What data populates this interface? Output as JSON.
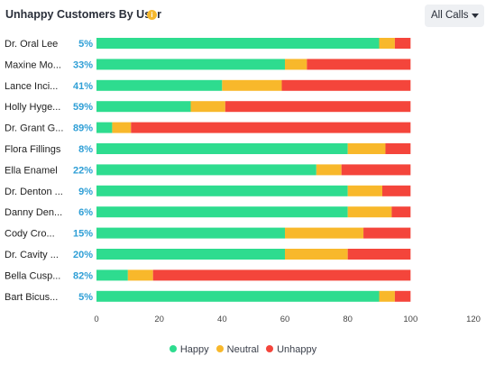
{
  "header": {
    "title": "Unhappy Customers By User",
    "info_icon": "info-icon"
  },
  "filter": {
    "selected": "All Calls",
    "icon": "caret-down-icon"
  },
  "colors": {
    "happy": "#2edc8f",
    "neutral": "#f8b82b",
    "unhappy": "#f4453b",
    "percent_text": "#2f9fd6"
  },
  "chart_data": {
    "type": "bar",
    "orientation": "horizontal",
    "stacked": true,
    "categories": [
      "Dr. Oral Lee",
      "Maxine Mo...",
      "Lance Inci...",
      "Holly Hyge...",
      "Dr. Grant G...",
      "Flora Fillings",
      "Ella Enamel",
      "Dr. Denton ...",
      "Danny Den...",
      "Cody Cro...",
      "Dr. Cavity ...",
      "Bella Cusp...",
      "Bart Bicus..."
    ],
    "unhappy_labels": [
      "5%",
      "33%",
      "41%",
      "59%",
      "89%",
      "8%",
      "22%",
      "9%",
      "6%",
      "15%",
      "20%",
      "82%",
      "5%"
    ],
    "series": [
      {
        "name": "Happy",
        "values": [
          90,
          60,
          40,
          30,
          5,
          80,
          70,
          80,
          80,
          60,
          60,
          10,
          90
        ]
      },
      {
        "name": "Neutral",
        "values": [
          5,
          7,
          19,
          11,
          6,
          12,
          8,
          11,
          14,
          25,
          20,
          8,
          5
        ]
      },
      {
        "name": "Unhappy",
        "values": [
          5,
          33,
          41,
          59,
          89,
          8,
          22,
          9,
          6,
          15,
          20,
          82,
          5
        ]
      }
    ],
    "xlim": [
      0,
      120
    ],
    "xticks": [
      0,
      20,
      40,
      60,
      80,
      100,
      120
    ],
    "grid": false,
    "legend_position": "bottom"
  }
}
